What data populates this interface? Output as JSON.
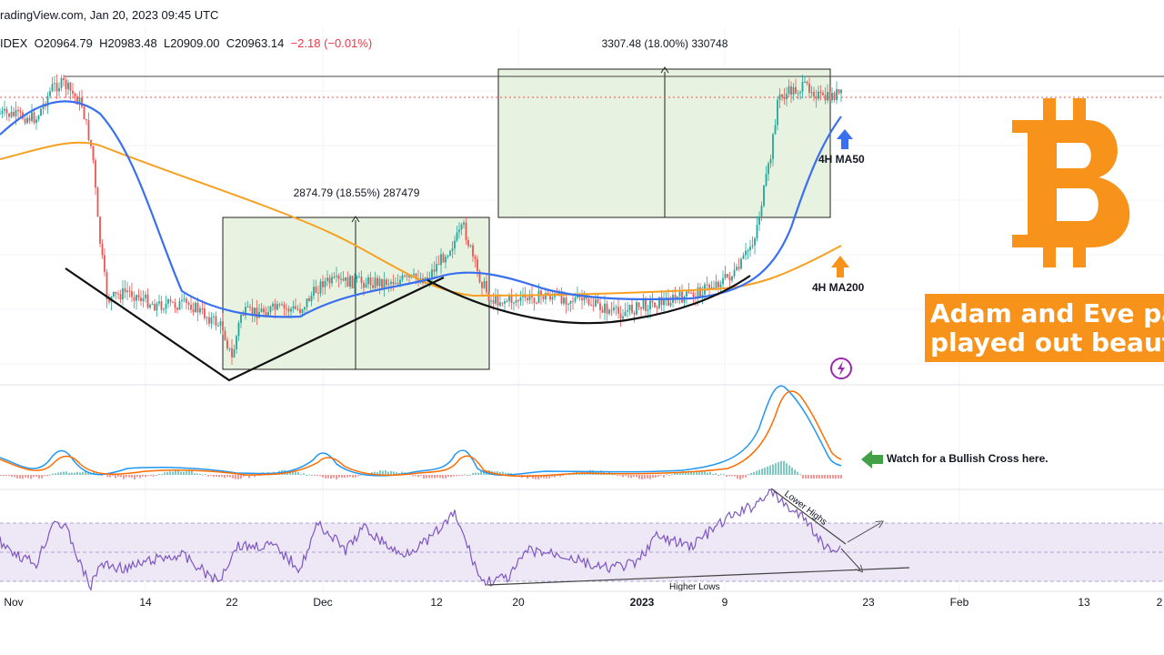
{
  "header": {
    "source": "radingView.com, Jan 20, 2023 09:45 UTC",
    "symbol_fragment": "IDEX",
    "open": "O20964.79",
    "high": "H20983.48",
    "low": "L20909.00",
    "close": "C20963.14",
    "change": "−2.18 (−0.01%)"
  },
  "annotations": {
    "measure_1": "2874.79 (18.55%) 287479",
    "measure_2": "3307.48 (18.00%) 330748",
    "ma50_label": "4H MA50",
    "ma200_label": "4H MA200",
    "banner_line1": "Adam and Eve pattern",
    "banner_line2": "played out beautifully",
    "macd_note": "Watch for a Bullish Cross here.",
    "lower_highs": "Lower Highs",
    "higher_lows": "Higher Lows"
  },
  "colors": {
    "ma50": "#3a6ff0",
    "ma200": "#f7a021",
    "bitcoin": "#f7931a",
    "up_candle": "#26a69a",
    "down_candle": "#ef5350",
    "rsi": "#7e57c2",
    "rsi_band": "#ede7f6",
    "macd_line": "#2196f3",
    "signal_line": "#ff6d00",
    "measure_fill": "#e8f2e0",
    "arrow_green": "#43a047"
  },
  "icons": [
    "bitcoin-icon",
    "lightning-icon",
    "up-arrow-icon",
    "left-arrow-icon"
  ],
  "chart_data": {
    "type": "candlestick",
    "x_ticks": [
      "Nov",
      "14",
      "22",
      "Dec",
      "12",
      "20",
      "2023",
      "9",
      "23",
      "Feb",
      "13",
      "2"
    ],
    "price_key_points": [
      {
        "t": "Nov 5",
        "price": 21400
      },
      {
        "t": "Nov 9",
        "price": 17000
      },
      {
        "t": "Nov 22",
        "price": 15600
      },
      {
        "t": "Dec 14",
        "price": 18400
      },
      {
        "t": "Jan 10",
        "price": 17400
      },
      {
        "t": "Jan 14",
        "price": 20900
      },
      {
        "t": "Jan 20",
        "price": 20963
      }
    ],
    "ma50": "4H MA50",
    "ma200": "4H MA200",
    "panels": [
      "price",
      "MACD",
      "RSI"
    ]
  }
}
